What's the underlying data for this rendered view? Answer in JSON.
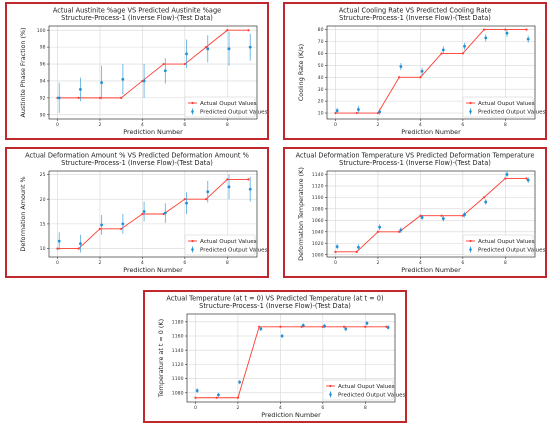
{
  "colors": {
    "border": "#c0282d",
    "actual": "#ff3b30",
    "predicted": "#1f8fd6"
  },
  "chart_data": [
    {
      "type": "line",
      "title": "Actual Austinite %age VS Predicted Austinite %age",
      "subtitle": "Structure-Process-1 (Inverse Flow)-(Test Data)",
      "xlabel": "Prediction Number",
      "ylabel": "Austinite Phase Fraction (%)",
      "xlim": [
        -0.4,
        9.4
      ],
      "ylim": [
        89.5,
        100.5
      ],
      "xticks": [
        0,
        2,
        4,
        6,
        8
      ],
      "yticks": [
        90,
        92,
        94,
        96,
        98,
        100
      ],
      "legend": "bottom-right",
      "x": [
        0,
        1,
        2,
        3,
        4,
        5,
        6,
        7,
        8,
        9
      ],
      "series": [
        {
          "name": "Actual Ouput Values",
          "kind": "line-marker",
          "values": [
            92,
            92,
            92,
            92,
            94,
            96,
            96,
            98,
            100,
            100
          ]
        },
        {
          "name": "Predicted Output Values",
          "kind": "errorbar",
          "values": [
            92.0,
            93.0,
            93.8,
            94.2,
            94.0,
            95.2,
            97.2,
            97.8,
            97.8,
            98.0
          ],
          "errors": [
            1.8,
            1.4,
            2.0,
            1.8,
            2.0,
            1.5,
            1.7,
            1.6,
            2.0,
            1.6
          ]
        }
      ]
    },
    {
      "type": "line",
      "title": "Actual Cooling Rate VS Predicted Cooling Rate",
      "subtitle": "Structure-Process-1 (Inverse Flow)-(Test Data)",
      "xlabel": "Prediction Number",
      "ylabel": "Cooling Rate (K/s)",
      "xlim": [
        -0.4,
        9.4
      ],
      "ylim": [
        5,
        83
      ],
      "xticks": [
        0,
        2,
        4,
        6,
        8
      ],
      "yticks": [
        10,
        20,
        30,
        40,
        50,
        60,
        70,
        80
      ],
      "legend": "bottom-right",
      "x": [
        0,
        1,
        2,
        3,
        4,
        5,
        6,
        7,
        8,
        9
      ],
      "series": [
        {
          "name": "Actual Ouput Values",
          "kind": "line-marker",
          "values": [
            10,
            10,
            10,
            40,
            40,
            60,
            60,
            80,
            80,
            80
          ]
        },
        {
          "name": "Predicted Output Values",
          "kind": "errorbar",
          "values": [
            12,
            13,
            11,
            49,
            45,
            63,
            66,
            73,
            77,
            72
          ],
          "errors": [
            2.5,
            3,
            2.5,
            3,
            3,
            3,
            3,
            3,
            3,
            3
          ]
        }
      ]
    },
    {
      "type": "line",
      "title": "Actual Deformation Amount % VS Predicted Deformation Amount %",
      "subtitle": "Structure-Process-1 (Inverse Flow)-(Test Data)",
      "xlabel": "Prediction Number",
      "ylabel": "Deformation Amount %",
      "xlim": [
        -0.4,
        9.4
      ],
      "ylim": [
        8.3,
        25.7
      ],
      "xticks": [
        0,
        2,
        4,
        6,
        8
      ],
      "yticks": [
        10,
        15,
        20,
        25
      ],
      "legend": "bottom-right",
      "x": [
        0,
        1,
        2,
        3,
        4,
        5,
        6,
        7,
        8,
        9
      ],
      "series": [
        {
          "name": "Actual Ouput Values",
          "kind": "line-marker",
          "values": [
            10,
            10,
            14,
            14,
            17,
            17,
            20,
            20,
            24,
            24
          ]
        },
        {
          "name": "Predicted Output Values",
          "kind": "errorbar",
          "values": [
            11.5,
            11.0,
            14.8,
            15.0,
            17.5,
            17.2,
            19.2,
            21.5,
            22.5,
            22.0
          ],
          "errors": [
            1.8,
            1.8,
            2.0,
            2.0,
            2.0,
            2.0,
            2.2,
            2.2,
            2.5,
            2.5
          ]
        }
      ]
    },
    {
      "type": "line",
      "title": "Actual Deformation Temperature  VS Predicted Deformation Temperature",
      "subtitle": "Structure-Process-1 (Inverse Flow)-(Test Data)",
      "xlabel": "Prediction Number",
      "ylabel": "Deformation Temperature (K)",
      "xlim": [
        -0.4,
        9.4
      ],
      "ylim": [
        996,
        1146
      ],
      "xticks": [
        0,
        2,
        4,
        6,
        8
      ],
      "yticks": [
        1000,
        1020,
        1040,
        1060,
        1080,
        1100,
        1120,
        1140
      ],
      "legend": "bottom-right",
      "x": [
        0,
        1,
        2,
        3,
        4,
        5,
        6,
        7,
        8,
        9
      ],
      "series": [
        {
          "name": "Actual Ouput Values",
          "kind": "line-marker",
          "values": [
            1005,
            1005,
            1040,
            1040,
            1068,
            1068,
            1068,
            1100,
            1133,
            1133
          ]
        },
        {
          "name": "Predicted Output Values",
          "kind": "errorbar",
          "values": [
            1014,
            1013,
            1048,
            1043,
            1065,
            1063,
            1070,
            1092,
            1140,
            1130
          ],
          "errors": [
            5,
            5,
            5,
            5,
            5,
            5,
            5,
            5,
            5,
            5
          ]
        }
      ]
    },
    {
      "type": "line",
      "title": "Actual Temperature (at t = 0) VS Predicted Temperature (at t = 0)",
      "subtitle": "Structure-Process-1 (Inverse Flow)-(Test Data)",
      "xlabel": "Prediction Number",
      "ylabel": "Temperature at t = 0 (K)",
      "xlim": [
        -0.4,
        9.4
      ],
      "ylim": [
        1067,
        1191
      ],
      "xticks": [
        0,
        2,
        4,
        6,
        8
      ],
      "yticks": [
        1080,
        1100,
        1120,
        1140,
        1160,
        1180
      ],
      "legend": "bottom-right",
      "x": [
        0,
        1,
        2,
        3,
        4,
        5,
        6,
        7,
        8,
        9
      ],
      "series": [
        {
          "name": "Actual Ouput Values",
          "kind": "line-marker",
          "values": [
            1073,
            1073,
            1073,
            1173,
            1173,
            1173,
            1173,
            1173,
            1173,
            1173
          ]
        },
        {
          "name": "Predicted Output Values",
          "kind": "errorbar",
          "values": [
            1083,
            1077,
            1095,
            1170,
            1160,
            1175,
            1174,
            1170,
            1178,
            1172
          ],
          "errors": [
            3.5,
            3,
            3,
            3,
            3,
            3,
            3,
            3.5,
            3,
            3
          ]
        }
      ]
    }
  ]
}
